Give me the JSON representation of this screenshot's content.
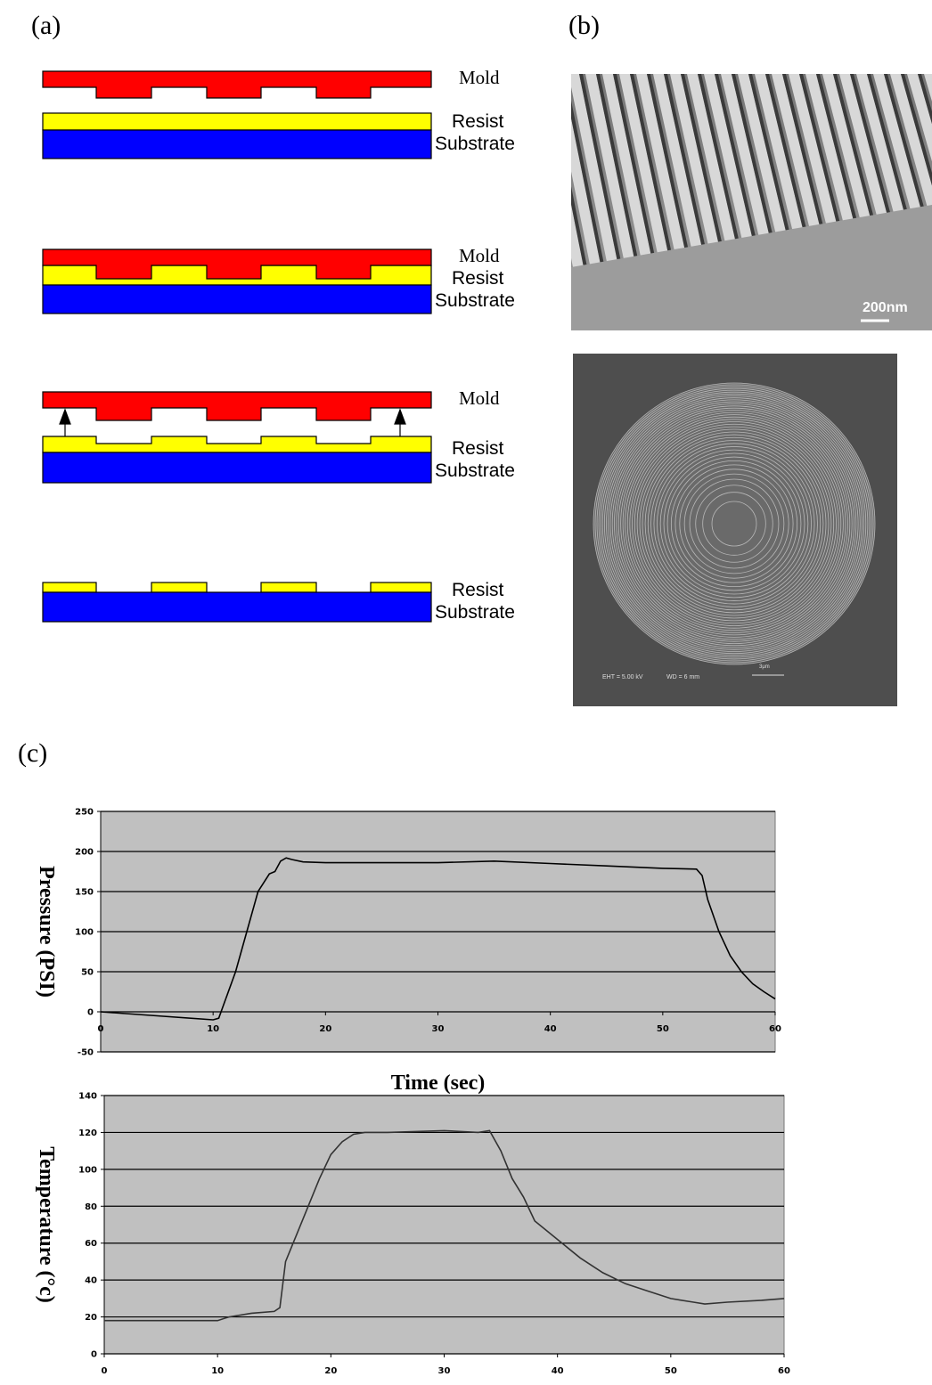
{
  "panel_labels": [
    "(a)",
    "(b)",
    "(c)"
  ],
  "diagram": {
    "steps": [
      {
        "labels": [
          "Mold",
          "Resist",
          "Substrate"
        ]
      },
      {
        "labels": [
          "Mold",
          "Resist",
          "Substrate"
        ]
      },
      {
        "labels": [
          "Mold",
          "Resist",
          "Substrate"
        ]
      },
      {
        "labels": [
          "Resist",
          "Substrate"
        ]
      }
    ]
  },
  "images": {
    "scale_bar": "200nm",
    "sem_eht": "EHT = 5.00 kV",
    "sem_wd": "WD =  6 mm",
    "sem_scale": "3μm"
  },
  "chart_data": [
    {
      "type": "line",
      "ylabel": "Pressure (PSI)",
      "xlabel": "Time (sec)",
      "x": [
        0,
        5,
        10,
        10.5,
        12,
        13,
        14,
        15,
        15.5,
        16,
        16.5,
        17,
        18,
        20,
        25,
        30,
        35,
        40,
        45,
        50,
        53,
        53.5,
        54,
        55,
        56,
        57,
        58,
        59,
        60
      ],
      "values": [
        0,
        -5,
        -10,
        -8,
        50,
        100,
        150,
        172,
        175,
        188,
        192,
        190,
        187,
        186,
        186,
        186,
        188,
        185,
        182,
        179,
        178,
        170,
        140,
        100,
        70,
        50,
        35,
        25,
        16
      ],
      "color": "#000000",
      "background": "#c0c0c0",
      "xlim": [
        0,
        60
      ],
      "xticks": [
        0,
        10,
        20,
        30,
        40,
        50,
        60
      ],
      "ylim": [
        -50,
        250
      ],
      "yticks": [
        -50,
        0,
        50,
        100,
        150,
        200,
        250
      ],
      "grid": true
    },
    {
      "type": "line",
      "ylabel": "Temperature (°c)",
      "x": [
        0,
        10,
        11,
        13,
        15,
        15.5,
        16,
        17,
        18,
        19,
        20,
        21,
        22,
        23,
        25,
        30,
        33,
        34,
        35,
        36,
        37,
        38,
        40,
        42,
        44,
        46,
        48,
        50,
        52,
        53,
        55,
        58,
        60
      ],
      "values": [
        18,
        18,
        20,
        22,
        23,
        25,
        50,
        65,
        80,
        95,
        108,
        115,
        119,
        120,
        120,
        121,
        120,
        121,
        110,
        95,
        85,
        72,
        62,
        52,
        44,
        38,
        34,
        30,
        28,
        27,
        28,
        29,
        30
      ],
      "color": "#333333",
      "background": "#c0c0c0",
      "xlim": [
        0,
        60
      ],
      "xticks": [
        0,
        10,
        20,
        30,
        40,
        50,
        60
      ],
      "ylim": [
        0,
        140
      ],
      "yticks": [
        0,
        20,
        40,
        60,
        80,
        100,
        120,
        140
      ],
      "grid": true
    }
  ]
}
